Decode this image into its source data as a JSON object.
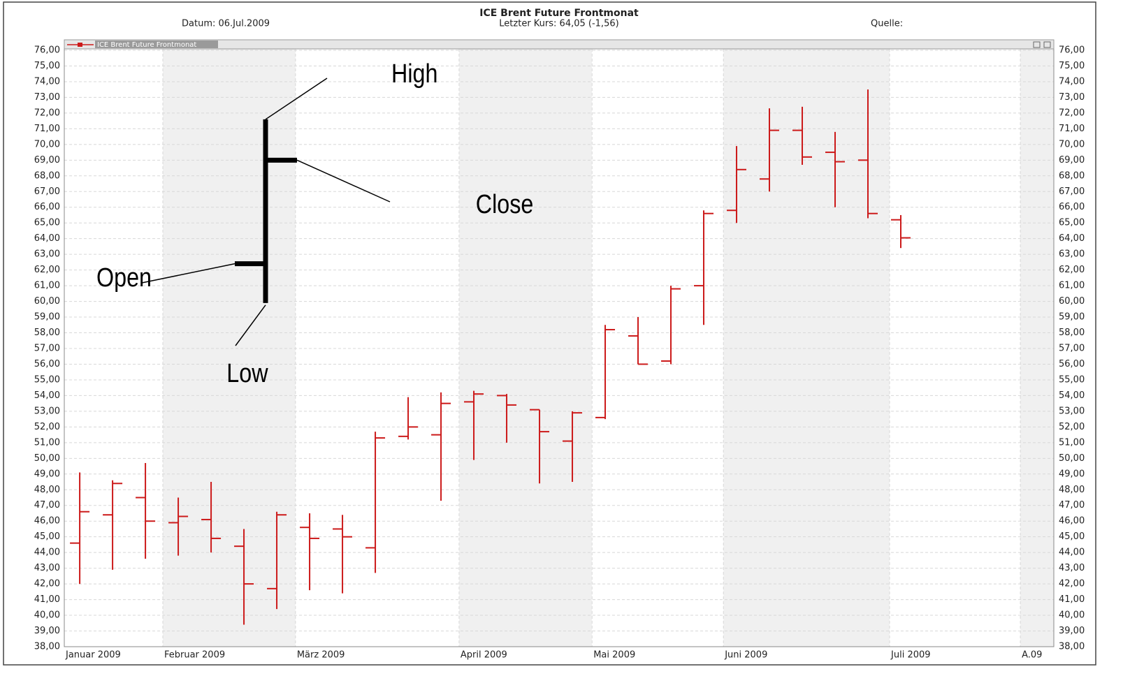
{
  "chart_data": {
    "type": "ohlc",
    "title": "ICE Brent Future Frontmonat",
    "date_label": "Datum: 06.Jul.2009",
    "last_price": "Letzter Kurs: 64,05 (-1,56)",
    "source": "Quelle:",
    "legend": "ICE Brent Future Frontmonat",
    "color": "#cc1a1a",
    "series": {
      "open": [
        44.6,
        46.4,
        47.5,
        45.9,
        46.1,
        44.4,
        41.7,
        45.6,
        45.5,
        44.3,
        51.4,
        51.5,
        53.6,
        54.0,
        53.1,
        51.1,
        52.6,
        57.8,
        56.2,
        61.0,
        65.8,
        67.8,
        70.9,
        69.5,
        69.0,
        65.2
      ],
      "high": [
        49.1,
        48.6,
        49.7,
        47.5,
        48.5,
        45.5,
        46.6,
        46.5,
        46.4,
        51.7,
        53.9,
        54.2,
        54.3,
        54.1,
        53.1,
        53.0,
        58.5,
        59.0,
        61.0,
        65.8,
        69.9,
        72.3,
        72.4,
        70.8,
        73.5,
        65.5
      ],
      "low": [
        42.0,
        42.9,
        43.6,
        43.8,
        44.0,
        39.4,
        40.4,
        41.6,
        41.4,
        42.7,
        51.2,
        47.3,
        49.9,
        51.0,
        48.4,
        48.5,
        52.5,
        56.0,
        56.0,
        58.5,
        65.0,
        67.0,
        68.7,
        66.0,
        65.3,
        63.4
      ],
      "close": [
        46.6,
        48.4,
        46.0,
        46.3,
        44.9,
        42.0,
        46.4,
        44.9,
        45.0,
        51.3,
        52.0,
        53.5,
        54.1,
        53.4,
        51.7,
        52.9,
        58.2,
        56.0,
        60.8,
        65.6,
        68.4,
        70.9,
        69.2,
        68.9,
        65.6,
        64.05
      ]
    },
    "example": {
      "open": 62.4,
      "high": 71.6,
      "low": 59.9,
      "close": 69.0,
      "labels": {
        "high": "High",
        "close": "Close",
        "open": "Open",
        "low": "Low"
      }
    },
    "xlim": [
      -0.47,
      29.66
    ],
    "xticks": [
      {
        "value": -0.47,
        "label": "Januar 2009"
      },
      {
        "value": 2.53,
        "label": "Februar 2009"
      },
      {
        "value": 6.57,
        "label": "März 2009"
      },
      {
        "value": 11.55,
        "label": "April 2009"
      },
      {
        "value": 15.6,
        "label": "Mai 2009"
      },
      {
        "value": 19.6,
        "label": "Juni 2009"
      },
      {
        "value": 24.66,
        "label": "Juli 2009"
      },
      {
        "value": 28.64,
        "label": "A.09"
      }
    ],
    "ylim": [
      38,
      76
    ],
    "yticks": [
      {
        "value": 38,
        "label": "38,00"
      },
      {
        "value": 39,
        "label": "39,00"
      },
      {
        "value": 40,
        "label": "40,00"
      },
      {
        "value": 41,
        "label": "41,00"
      },
      {
        "value": 42,
        "label": "42,00"
      },
      {
        "value": 43,
        "label": "43,00"
      },
      {
        "value": 44,
        "label": "44,00"
      },
      {
        "value": 45,
        "label": "45,00"
      },
      {
        "value": 46,
        "label": "46,00"
      },
      {
        "value": 47,
        "label": "47,00"
      },
      {
        "value": 48,
        "label": "48,00"
      },
      {
        "value": 49,
        "label": "49,00"
      },
      {
        "value": 50,
        "label": "50,00"
      },
      {
        "value": 51,
        "label": "51,00"
      },
      {
        "value": 52,
        "label": "52,00"
      },
      {
        "value": 53,
        "label": "53,00"
      },
      {
        "value": 54,
        "label": "54,00"
      },
      {
        "value": 55,
        "label": "55,00"
      },
      {
        "value": 56,
        "label": "56,00"
      },
      {
        "value": 57,
        "label": "57,00"
      },
      {
        "value": 58,
        "label": "58,00"
      },
      {
        "value": 59,
        "label": "59,00"
      },
      {
        "value": 60,
        "label": "60,00"
      },
      {
        "value": 61,
        "label": "61,00"
      },
      {
        "value": 62,
        "label": "62,00"
      },
      {
        "value": 63,
        "label": "63,00"
      },
      {
        "value": 64,
        "label": "64,00"
      },
      {
        "value": 65,
        "label": "65,00"
      },
      {
        "value": 66,
        "label": "66,00"
      },
      {
        "value": 67,
        "label": "67,00"
      },
      {
        "value": 68,
        "label": "68,00"
      },
      {
        "value": 69,
        "label": "69,00"
      },
      {
        "value": 70,
        "label": "70,00"
      },
      {
        "value": 71,
        "label": "71,00"
      },
      {
        "value": 72,
        "label": "72,00"
      },
      {
        "value": 73,
        "label": "73,00"
      },
      {
        "value": 74,
        "label": "74,00"
      },
      {
        "value": 75,
        "label": "75,00"
      },
      {
        "value": 76,
        "label": "76,00"
      }
    ],
    "grid": true,
    "alternate_month_shading": true
  }
}
